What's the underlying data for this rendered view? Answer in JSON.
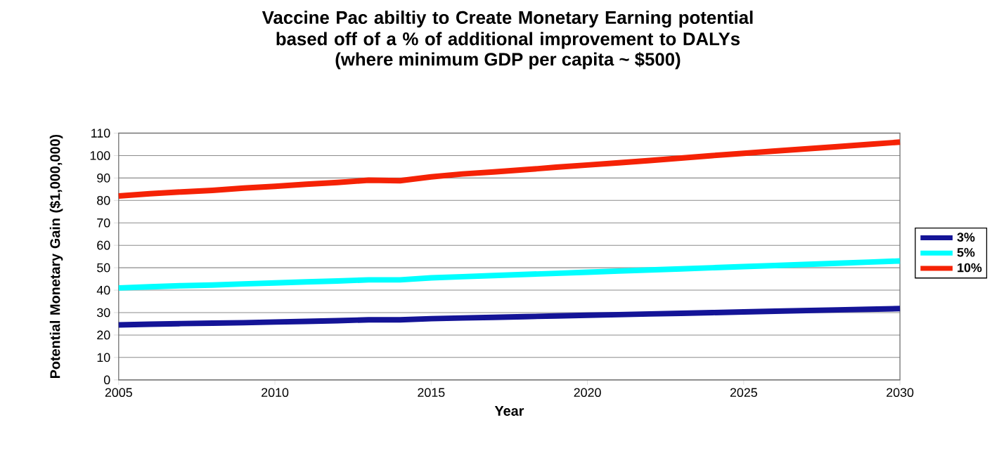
{
  "chart_data": {
    "type": "line",
    "title": "Vaccine Pac abiltiy to Create Monetary Earning potential based off of a % of additional improvement to DALYs",
    "subtitle": "(where minimum GDP per capita ~ $500)",
    "xlabel": "Year",
    "ylabel": "Potential Monetary Gain ($1,000,000)",
    "x": [
      2005,
      2006,
      2007,
      2008,
      2009,
      2010,
      2011,
      2012,
      2013,
      2014,
      2015,
      2016,
      2017,
      2018,
      2019,
      2020,
      2021,
      2022,
      2023,
      2024,
      2025,
      2026,
      2027,
      2028,
      2029,
      2030
    ],
    "series": [
      {
        "name": "3%",
        "color": "#141497",
        "values": [
          24.5,
          24.8,
          25.1,
          25.3,
          25.5,
          25.8,
          26.1,
          26.4,
          26.8,
          26.8,
          27.3,
          27.6,
          27.9,
          28.2,
          28.5,
          28.8,
          29.1,
          29.4,
          29.7,
          30,
          30.3,
          30.6,
          30.9,
          31.2,
          31.5,
          31.8
        ]
      },
      {
        "name": "5%",
        "color": "#00ffff",
        "values": [
          41,
          41.5,
          42,
          42.3,
          42.8,
          43.2,
          43.7,
          44.1,
          44.6,
          44.6,
          45.5,
          46,
          46.5,
          47,
          47.5,
          48,
          48.5,
          49,
          49.5,
          50,
          50.5,
          51,
          51.5,
          52,
          52.5,
          53
        ]
      },
      {
        "name": "10%",
        "color": "#f52205",
        "values": [
          82,
          83,
          83.8,
          84.5,
          85.5,
          86.3,
          87.2,
          88,
          89,
          88.8,
          90.5,
          91.8,
          92.7,
          93.7,
          94.8,
          95.8,
          96.8,
          97.8,
          98.9,
          100,
          101,
          102,
          103,
          104,
          105,
          106
        ]
      }
    ],
    "xlim": [
      2005,
      2030
    ],
    "xticks": [
      2005,
      2010,
      2015,
      2020,
      2025,
      2030
    ],
    "ylim": [
      0,
      110
    ],
    "yticks": [
      0,
      10,
      20,
      30,
      40,
      50,
      60,
      70,
      80,
      90,
      100,
      110
    ],
    "grid": "y",
    "legend": "right",
    "marker": "none",
    "line_style": "solid"
  }
}
